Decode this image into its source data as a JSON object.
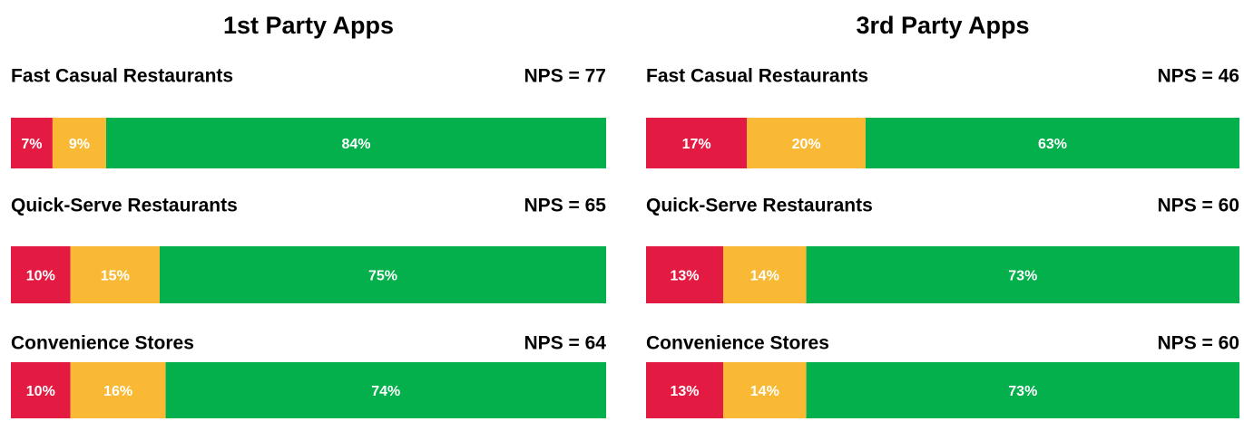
{
  "chart_data": [
    {
      "type": "bar",
      "orientation": "horizontal",
      "stacked": true,
      "title": "1st Party Apps",
      "categories": [
        "Fast Casual Restaurants",
        "Quick-Serve Restaurants",
        "Convenience Stores"
      ],
      "annotations": [
        "NPS = 77",
        "NPS = 65",
        "NPS = 64"
      ],
      "xlim": [
        0,
        100
      ],
      "series": [
        {
          "color": "#e31b43",
          "values": [
            7,
            10,
            10
          ],
          "value_labels": [
            "7%",
            "10%",
            "10%"
          ]
        },
        {
          "color": "#f9b934",
          "values": [
            9,
            15,
            16
          ],
          "value_labels": [
            "9%",
            "15%",
            "16%"
          ]
        },
        {
          "color": "#03b04b",
          "values": [
            84,
            75,
            74
          ],
          "value_labels": [
            "84%",
            "75%",
            "74%"
          ]
        }
      ]
    },
    {
      "type": "bar",
      "orientation": "horizontal",
      "stacked": true,
      "title": "3rd Party Apps",
      "categories": [
        "Fast Casual Restaurants",
        "Quick-Serve Restaurants",
        "Convenience Stores"
      ],
      "annotations": [
        "NPS = 46",
        "NPS = 60",
        "NPS = 60"
      ],
      "xlim": [
        0,
        100
      ],
      "series": [
        {
          "color": "#e31b43",
          "values": [
            17,
            13,
            13
          ],
          "value_labels": [
            "17%",
            "13%",
            "13%"
          ]
        },
        {
          "color": "#f9b934",
          "values": [
            20,
            14,
            14
          ],
          "value_labels": [
            "20%",
            "14%",
            "14%"
          ]
        },
        {
          "color": "#03b04b",
          "values": [
            63,
            73,
            73
          ],
          "value_labels": [
            "63%",
            "73%",
            "73%"
          ]
        }
      ]
    }
  ]
}
